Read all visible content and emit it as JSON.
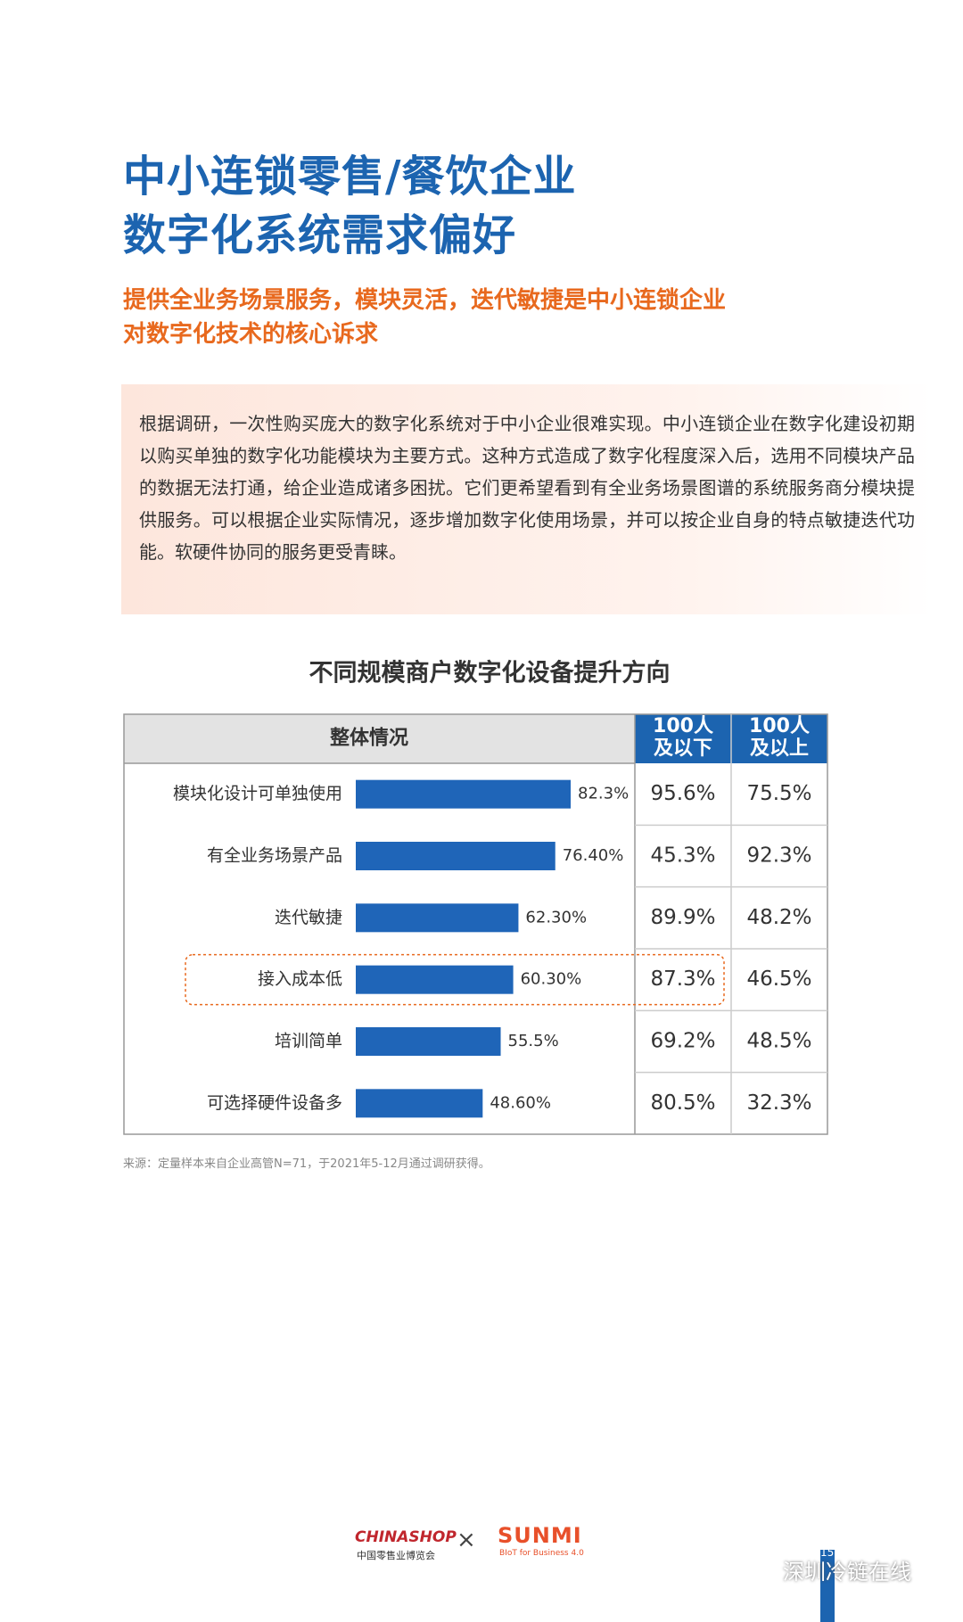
{
  "header": {
    "title_lines": [
      "中小连锁零售/餐饮企业",
      "数字化系统需求偏好"
    ],
    "subtitle_lines": [
      "提供全业务场景服务，模块灵活，迭代敏捷是中小连锁企业",
      "对数字化技术的核心诉求"
    ]
  },
  "paragraph": "根据调研，一次性购买庞大的数字化系统对于中小企业很难实现。中小连锁企业在数字化建设初期以购买单独的数字化功能模块为主要方式。这种方式造成了数字化程度深入后，选用不同模块产品的数据无法打通，给企业造成诸多困扰。它们更希望看到有全业务场景图谱的系统服务商分模块提供服务。可以根据企业实际情况，逐步增加数字化使用场景，并可以按企业自身的特点敏捷迭代功能。软硬件协同的服务更受青睐。",
  "chart_data": {
    "type": "bar",
    "title": "不同规模商户数字化设备提升方向",
    "header": "整体情况",
    "color": "#1f65b8",
    "categories": [
      "模块化设计可单独使用",
      "有全业务场景产品",
      "迭代敏捷",
      "接入成本低",
      "培训简单",
      "可选择硬件设备多"
    ],
    "values": [
      82.3,
      76.4,
      62.3,
      60.3,
      55.5,
      48.6
    ],
    "value_labels": [
      "82.3%",
      "76.40%",
      "62.30%",
      "60.30%",
      "55.5%",
      "48.60%"
    ],
    "highlight": 3
  },
  "table": {
    "columns": [
      [
        "100人",
        "及以下"
      ],
      [
        "100人",
        "及以上"
      ]
    ],
    "rows": [
      [
        "95.6%",
        "75.5%"
      ],
      [
        "45.3%",
        "92.3%"
      ],
      [
        "89.9%",
        "48.2%"
      ],
      [
        "87.3%",
        "46.5%"
      ],
      [
        "69.2%",
        "48.5%"
      ],
      [
        "80.5%",
        "32.3%"
      ]
    ]
  },
  "source": "来源：定量样本来自企业高管N=71，于2021年5-12月通过调研获得。",
  "footer": {
    "logo_left": "CHINASHOP",
    "logo_left_sub": "中国零售业博览会",
    "separator": "×",
    "logo_right": "SUNMI",
    "logo_right_sub": "BIoT for Business 4.0",
    "page": "15",
    "watermark": "深圳冷链在线"
  }
}
